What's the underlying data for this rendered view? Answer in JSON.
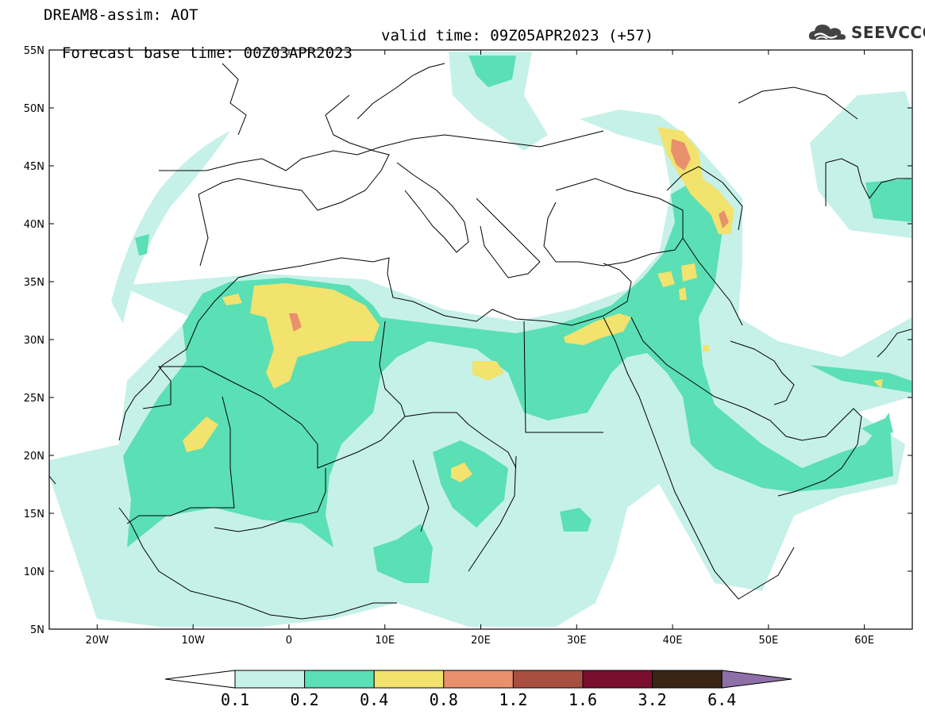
{
  "header": {
    "line1": "DREAM8-assim: AOT",
    "base_label": "Forecast base time: 00Z03APR2023",
    "valid_label": "valid time: 09Z05APR2023 (+57)"
  },
  "logo": {
    "text": "SEEVCCC",
    "icon": "cloud-icon"
  },
  "map": {
    "lon_range": [
      -25,
      65
    ],
    "lat_range": [
      5,
      55
    ],
    "lat_ticks": [
      {
        "value": 55,
        "label": "55N"
      },
      {
        "value": 50,
        "label": "50N"
      },
      {
        "value": 45,
        "label": "45N"
      },
      {
        "value": 40,
        "label": "40N"
      },
      {
        "value": 35,
        "label": "35N"
      },
      {
        "value": 30,
        "label": "30N"
      },
      {
        "value": 25,
        "label": "25N"
      },
      {
        "value": 20,
        "label": "20N"
      },
      {
        "value": 15,
        "label": "15N"
      },
      {
        "value": 10,
        "label": "10N"
      },
      {
        "value": 5,
        "label": "5N"
      }
    ],
    "lon_ticks": [
      {
        "value": -20,
        "label": "20W"
      },
      {
        "value": -10,
        "label": "10W"
      },
      {
        "value": 0,
        "label": "0"
      },
      {
        "value": 10,
        "label": "10E"
      },
      {
        "value": 20,
        "label": "20E"
      },
      {
        "value": 30,
        "label": "30E"
      },
      {
        "value": 40,
        "label": "40E"
      },
      {
        "value": 50,
        "label": "50E"
      },
      {
        "value": 60,
        "label": "60E"
      }
    ]
  },
  "colorbar": {
    "levels": [
      "0.1",
      "0.2",
      "0.4",
      "0.8",
      "1.2",
      "1.6",
      "3.2",
      "6.4"
    ],
    "colors": [
      "#c6f1e8",
      "#5bdfb5",
      "#f2e26e",
      "#e9906c",
      "#a94f42",
      "#7a0e30",
      "#3a2515",
      "#8f6fa8"
    ],
    "under_color": "#ffffff"
  }
}
